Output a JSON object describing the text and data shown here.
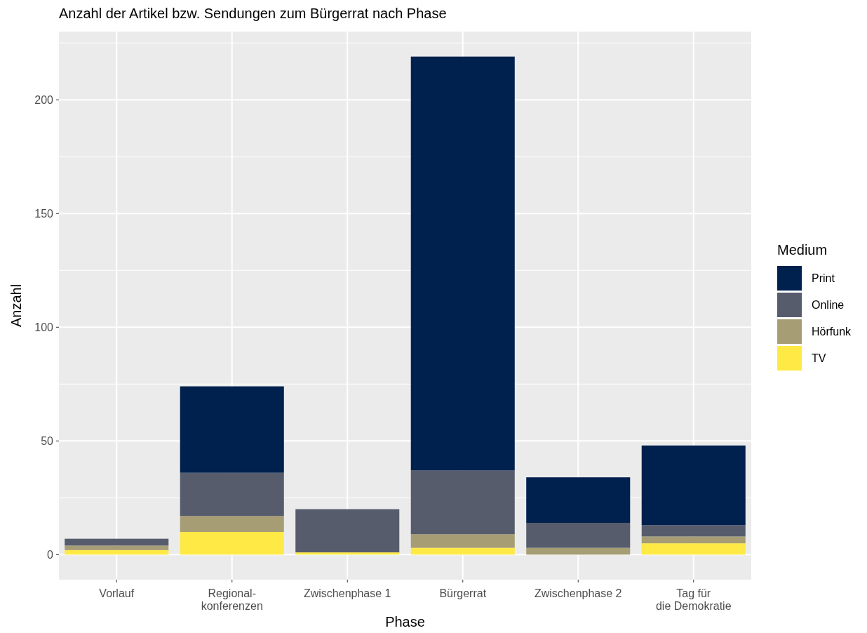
{
  "chart_data": {
    "type": "bar",
    "stacked": true,
    "title": "Anzahl der Artikel bzw. Sendungen zum Bürgerrat nach Phase",
    "xlabel": "Phase",
    "ylabel": "Anzahl",
    "legend_title": "Medium",
    "legend": "right",
    "grid": true,
    "categories": [
      "Vorlauf",
      "Regional-\nkonferenzen",
      "Zwischenphase 1",
      "Bürgerrat",
      "Zwischenphase 2",
      "Tag für\ndie Demokratie"
    ],
    "ylim": [
      -11,
      230
    ],
    "yticks": [
      0,
      50,
      100,
      150,
      200
    ],
    "series": [
      {
        "name": "TV",
        "color": "#ffe945",
        "values": [
          2,
          10,
          1,
          3,
          0,
          5
        ]
      },
      {
        "name": "Hörfunk",
        "color": "#a69d75",
        "values": [
          2,
          7,
          0,
          6,
          3,
          3
        ]
      },
      {
        "name": "Online",
        "color": "#575c6d",
        "values": [
          3,
          19,
          19,
          28,
          11,
          5
        ]
      },
      {
        "name": "Print",
        "color": "#00204d",
        "values": [
          0,
          38,
          0,
          182,
          20,
          35
        ]
      }
    ]
  }
}
